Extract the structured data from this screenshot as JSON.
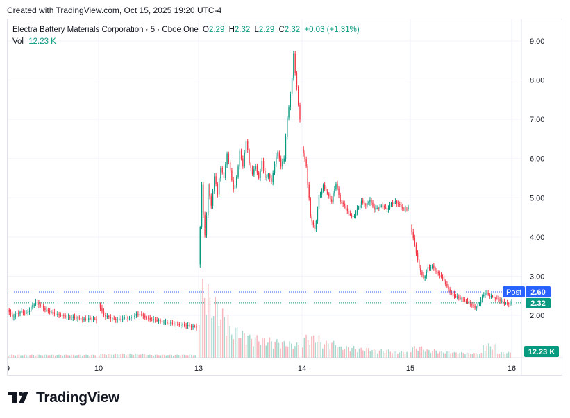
{
  "caption": "Created with TradingView.com, Oct 15, 2025 19:20 UTC-4",
  "legend": {
    "symbol": "Electra Battery Materials Corporation · 5 · Cboe One",
    "open_label": "O",
    "open": "2.29",
    "high_label": "H",
    "high": "2.32",
    "low_label": "L",
    "low": "2.29",
    "close_label": "C",
    "close": "2.32",
    "change": "+0.03 (+1.31%)",
    "vol_label": "Vol",
    "vol": "12.23 K"
  },
  "brand": "TradingView",
  "colors": {
    "up": "#089981",
    "down": "#f23645",
    "post": "#2962ff",
    "text": "#131722",
    "grid": "#f0f3fa"
  },
  "chart_data": {
    "type": "candlestick",
    "ylim": [
      1.0,
      9.3
    ],
    "y_ticks": [
      "9.00",
      "8.00",
      "7.00",
      "6.00",
      "5.00",
      "4.00",
      "3.00",
      "2.00"
    ],
    "x_ticks": [
      "9",
      "10",
      "13",
      "14",
      "15",
      "16"
    ],
    "badges": {
      "post_label": "Post",
      "post_price": "2.60",
      "last_price": "2.32",
      "volume": "12.23 K"
    },
    "series": [
      {
        "name": "price",
        "session": "9",
        "path": [
          2.15,
          1.95,
          2.05,
          2.1,
          2.05,
          2.2,
          2.35,
          2.25,
          2.15,
          2.1,
          2.05,
          2.0,
          1.98,
          1.95,
          1.95,
          1.93,
          1.9,
          1.9,
          1.92,
          1.88
        ]
      },
      {
        "name": "price",
        "session": "10",
        "path": [
          2.3,
          2.0,
          1.95,
          1.9,
          1.9,
          1.95,
          1.92,
          2.0,
          2.05,
          1.95,
          1.9,
          1.88,
          1.85,
          1.82,
          1.8,
          1.78,
          1.76,
          1.74,
          1.72,
          1.7
        ]
      },
      {
        "name": "price",
        "session": "13",
        "path": [
          3.3,
          5.2,
          4.0,
          5.3,
          4.8,
          5.6,
          5.1,
          5.8,
          5.5,
          6.1,
          5.7,
          5.2,
          5.5,
          6.2,
          5.8,
          6.5,
          5.9,
          5.6,
          5.8,
          5.5,
          5.9,
          5.5,
          5.6,
          5.4,
          5.9,
          6.2,
          5.8,
          6.0,
          7.0,
          7.6,
          8.6,
          7.8,
          7.0
        ]
      },
      {
        "name": "price",
        "session": "14",
        "path": [
          6.3,
          5.8,
          4.5,
          4.2,
          5.0,
          5.3,
          5.1,
          4.9,
          5.4,
          4.9,
          4.8,
          4.6,
          4.5,
          4.7,
          4.9,
          4.8,
          4.95,
          4.7,
          4.75,
          4.8,
          4.7,
          4.85,
          4.9,
          4.8,
          4.7,
          4.75
        ]
      },
      {
        "name": "price",
        "session": "15",
        "path": [
          4.3,
          3.8,
          3.2,
          2.95,
          3.2,
          3.25,
          3.1,
          3.0,
          2.8,
          2.6,
          2.5,
          2.45,
          2.4,
          2.35,
          2.25,
          2.2,
          2.4,
          2.6,
          2.5,
          2.45,
          2.4,
          2.35,
          2.3,
          2.32
        ]
      }
    ],
    "volume_profile": {
      "session_13": [
        0.9,
        0.7,
        0.55,
        0.35,
        0.3,
        0.25,
        0.22,
        0.2,
        0.18,
        0.16
      ],
      "session_14": [
        0.25,
        0.18,
        0.12,
        0.1,
        0.08,
        0.06
      ],
      "session_15": [
        0.12,
        0.08,
        0.06,
        0.05,
        0.04,
        0.15,
        0.05
      ]
    }
  }
}
